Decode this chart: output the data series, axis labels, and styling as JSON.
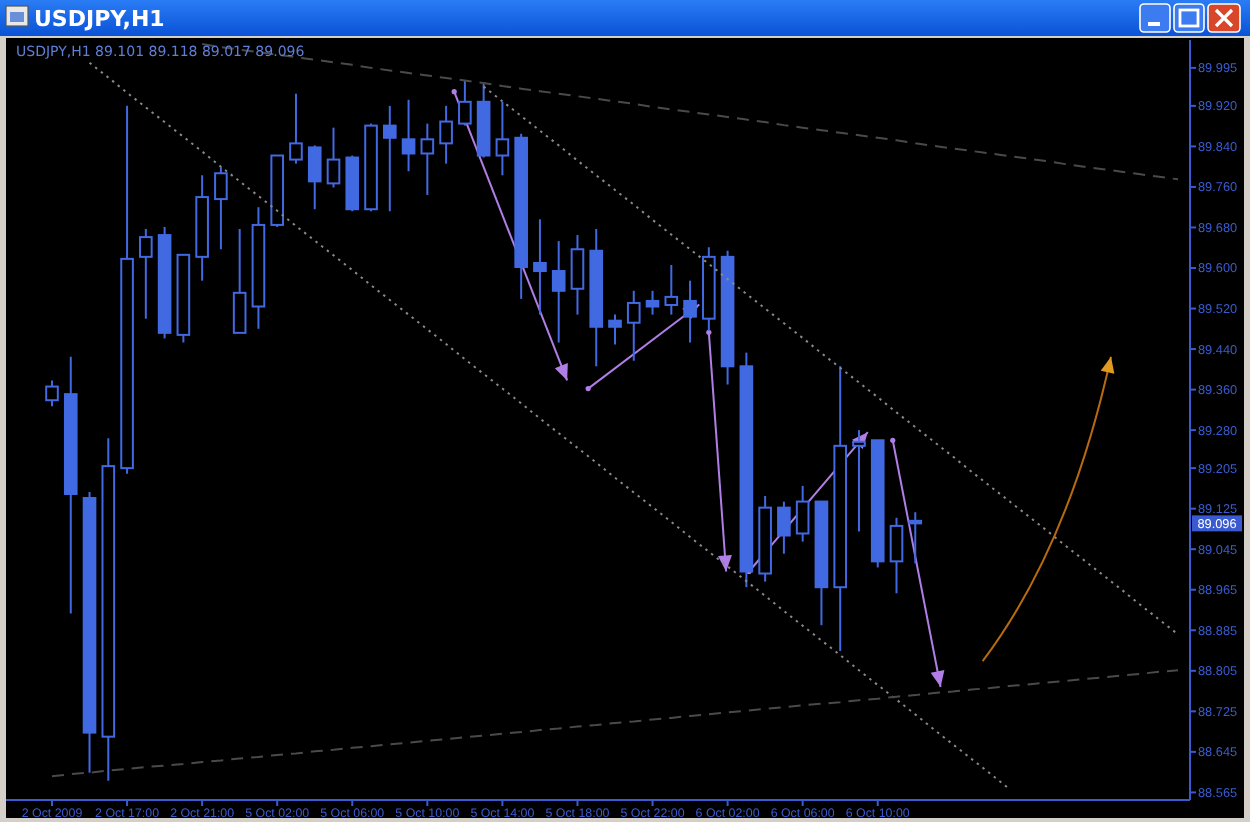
{
  "chart_data": {
    "type": "candlestick",
    "title": "USDJPY,H1",
    "subtitle": "USDJPY,H1  89.101 89.118 89.017 89.096",
    "color": "#4169e1",
    "categories": [
      "2 Oct 2009",
      null,
      null,
      null,
      "2 Oct 17:00",
      null,
      null,
      null,
      "2 Oct 21:00",
      null,
      null,
      null,
      "5 Oct 02:00",
      null,
      null,
      null,
      "5 Oct 06:00",
      null,
      null,
      null,
      "5 Oct 10:00",
      null,
      null,
      null,
      "5 Oct 14:00",
      null,
      null,
      null,
      "5 Oct 18:00",
      null,
      null,
      null,
      "5 Oct 22:00",
      null,
      null,
      null,
      "6 Oct 02:00",
      null,
      null,
      null,
      "6 Oct 06:00",
      null,
      null,
      null,
      "6 Oct 10:00",
      null,
      null,
      null,
      null,
      null,
      null,
      null,
      null,
      null,
      null,
      null,
      null,
      null,
      null,
      null,
      null
    ],
    "ohlc": [
      [
        89.339,
        89.378,
        89.327,
        89.366
      ],
      [
        89.351,
        89.425,
        88.918,
        89.154
      ],
      [
        89.146,
        89.158,
        88.604,
        88.683
      ],
      [
        88.675,
        89.264,
        88.588,
        89.209
      ],
      [
        89.205,
        89.92,
        89.194,
        89.618
      ],
      [
        89.622,
        89.677,
        89.5,
        89.661
      ],
      [
        89.665,
        89.681,
        89.461,
        89.472
      ],
      [
        89.468,
        89.626,
        89.453,
        89.626
      ],
      [
        89.622,
        89.783,
        89.575,
        89.74
      ],
      [
        89.736,
        89.799,
        89.637,
        89.787
      ],
      [
        89.472,
        89.677,
        89.472,
        89.551
      ],
      [
        89.524,
        89.72,
        89.48,
        89.685
      ],
      [
        89.685,
        89.822,
        89.681,
        89.822
      ],
      [
        89.814,
        89.944,
        89.806,
        89.846
      ],
      [
        89.838,
        89.842,
        89.716,
        89.771
      ],
      [
        89.767,
        89.877,
        89.759,
        89.814
      ],
      [
        89.818,
        89.822,
        89.712,
        89.716
      ],
      [
        89.716,
        89.885,
        89.712,
        89.881
      ],
      [
        89.881,
        89.92,
        89.712,
        89.857
      ],
      [
        89.854,
        89.932,
        89.791,
        89.826
      ],
      [
        89.826,
        89.885,
        89.744,
        89.854
      ],
      [
        89.846,
        89.92,
        89.806,
        89.889
      ],
      [
        89.885,
        89.971,
        89.881,
        89.928
      ],
      [
        89.928,
        89.964,
        89.818,
        89.822
      ],
      [
        89.822,
        89.928,
        89.783,
        89.854
      ],
      [
        89.857,
        89.865,
        89.539,
        89.602
      ],
      [
        89.61,
        89.696,
        89.508,
        89.594
      ],
      [
        89.594,
        89.653,
        89.453,
        89.555
      ],
      [
        89.559,
        89.665,
        89.508,
        89.637
      ],
      [
        89.634,
        89.677,
        89.406,
        89.484
      ],
      [
        89.496,
        89.508,
        89.449,
        89.484
      ],
      [
        89.492,
        89.555,
        89.417,
        89.531
      ],
      [
        89.535,
        89.555,
        89.508,
        89.524
      ],
      [
        89.527,
        89.606,
        89.508,
        89.543
      ],
      [
        89.535,
        89.575,
        89.453,
        89.504
      ],
      [
        89.5,
        89.641,
        89.476,
        89.622
      ],
      [
        89.622,
        89.634,
        89.37,
        89.406
      ],
      [
        89.406,
        89.433,
        88.97,
        89.001
      ],
      [
        88.997,
        89.15,
        88.981,
        89.127
      ],
      [
        89.127,
        89.139,
        89.036,
        89.072
      ],
      [
        89.076,
        89.17,
        89.06,
        89.139
      ],
      [
        89.139,
        89.139,
        88.895,
        88.97
      ],
      [
        88.97,
        89.406,
        88.844,
        89.249
      ],
      [
        89.249,
        89.28,
        89.08,
        89.257
      ],
      [
        89.26,
        89.26,
        89.009,
        89.021
      ],
      [
        89.021,
        89.107,
        88.958,
        89.091
      ],
      [
        89.101,
        89.118,
        89.017,
        89.096
      ],
      null,
      null,
      null,
      null,
      null,
      null,
      null,
      null,
      null,
      null,
      null,
      null,
      null,
      null
    ],
    "series": [
      {
        "type": "line",
        "color": "#4a4a4a",
        "line_style": "dashed",
        "values": [
          null,
          null,
          null,
          null,
          null,
          null,
          null,
          null,
          90.042,
          90.036,
          90.031,
          90.026,
          90.021,
          90.016,
          90.011,
          90.006,
          90.001,
          89.995,
          89.99,
          89.985,
          89.98,
          89.975,
          89.97,
          89.965,
          89.959,
          89.954,
          89.949,
          89.944,
          89.939,
          89.934,
          89.929,
          89.924,
          89.918,
          89.913,
          89.908,
          89.903,
          89.898,
          89.893,
          89.888,
          89.882,
          89.877,
          89.872,
          89.867,
          89.862,
          89.857,
          89.852,
          89.846,
          89.841,
          89.836,
          89.831,
          89.826,
          89.821,
          89.816,
          89.811,
          89.805,
          89.8,
          89.795,
          89.79,
          89.785,
          89.78,
          89.775
        ]
      },
      {
        "type": "line",
        "color": "#8a8a8a",
        "line_style": "dotted",
        "values": [
          null,
          null,
          null,
          null,
          null,
          null,
          null,
          null,
          null,
          null,
          null,
          null,
          null,
          null,
          null,
          null,
          null,
          null,
          null,
          null,
          null,
          null,
          null,
          89.958,
          89.929,
          89.9,
          89.871,
          89.842,
          89.812,
          89.783,
          89.754,
          89.725,
          89.695,
          89.666,
          89.637,
          89.608,
          89.578,
          89.549,
          89.52,
          89.491,
          89.462,
          89.432,
          89.403,
          89.374,
          89.345,
          89.315,
          89.286,
          89.257,
          89.228,
          89.198,
          89.169,
          89.14,
          89.111,
          89.082,
          89.052,
          89.023,
          88.994,
          88.965,
          88.935,
          88.906,
          88.877
        ]
      },
      {
        "type": "line",
        "color": "#8a8a8a",
        "line_style": "dotted",
        "values": [
          null,
          null,
          90.005,
          89.976,
          89.946,
          89.917,
          89.888,
          89.859,
          89.83,
          89.8,
          89.771,
          89.742,
          89.713,
          89.683,
          89.654,
          89.625,
          89.596,
          89.566,
          89.537,
          89.508,
          89.479,
          89.45,
          89.42,
          89.391,
          89.362,
          89.333,
          89.303,
          89.274,
          89.245,
          89.216,
          89.186,
          89.157,
          89.128,
          89.099,
          89.069,
          89.04,
          89.011,
          88.982,
          88.953,
          88.923,
          88.894,
          88.865,
          88.836,
          88.806,
          88.777,
          88.748,
          88.719,
          88.689,
          88.66,
          88.631,
          88.602,
          88.572,
          null,
          null,
          null,
          null,
          null,
          null,
          null,
          null,
          null
        ]
      },
      {
        "type": "line",
        "color": "#4a4a4a",
        "line_style": "dashed",
        "values": [
          88.597,
          88.601,
          88.604,
          88.608,
          88.611,
          88.615,
          88.618,
          88.621,
          88.625,
          88.628,
          88.632,
          88.635,
          88.639,
          88.642,
          88.646,
          88.649,
          88.653,
          88.656,
          88.66,
          88.663,
          88.667,
          88.67,
          88.674,
          88.677,
          88.681,
          88.684,
          88.688,
          88.691,
          88.695,
          88.698,
          88.702,
          88.705,
          88.709,
          88.712,
          88.716,
          88.719,
          88.723,
          88.726,
          88.73,
          88.733,
          88.737,
          88.74,
          88.743,
          88.747,
          88.75,
          88.754,
          88.757,
          88.761,
          88.764,
          88.768,
          88.771,
          88.775,
          88.778,
          88.782,
          88.785,
          88.789,
          88.792,
          88.796,
          88.799,
          88.803,
          88.806
        ]
      }
    ],
    "ylim": [
      88.55,
      90.05
    ],
    "yticks": [
      89.995,
      {
        "value": 89.92,
        "label": "89.920"
      },
      {
        "value": 89.84,
        "label": "89.840"
      },
      {
        "value": 89.76,
        "label": "89.760"
      },
      {
        "value": 89.68,
        "label": "89.680"
      },
      {
        "value": 89.6,
        "label": "89.600"
      },
      {
        "value": 89.52,
        "label": "89.520"
      },
      {
        "value": 89.44,
        "label": "89.440"
      },
      {
        "value": 89.36,
        "label": "89.360"
      },
      {
        "value": 89.28,
        "label": "89.280"
      },
      89.205,
      89.125,
      89.045,
      88.965,
      88.885,
      88.805,
      88.725,
      88.645,
      88.565
    ],
    "annotations": [
      {
        "text": "89.096",
        "y": 89.096
      }
    ]
  }
}
